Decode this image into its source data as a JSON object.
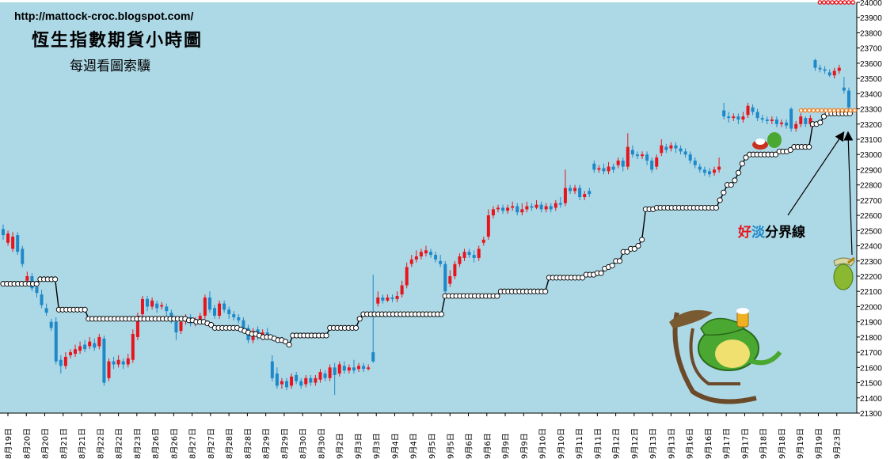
{
  "header": {
    "url": "http://mattock-croc.blogspot.com/",
    "title": "恆生指數期貨小時圖",
    "subtitle": "每週看圖索驥"
  },
  "annotation": {
    "label_good": "好",
    "label_weak": "淡",
    "label_rest": "分界線"
  },
  "colors": {
    "background": "#add8e6",
    "up_candle": "#e8141c",
    "down_candle": "#1e88c8",
    "stop_line": "#000000",
    "resistance_dots": "#f08020"
  },
  "icons": [
    "crocodile-rocking-chair-icon",
    "crocodile-small-icon",
    "crocodile-tiny-icon"
  ],
  "chart_data": {
    "type": "candlestick",
    "ylim": [
      21300,
      24000
    ],
    "yticks": [
      21300,
      21400,
      21500,
      21600,
      21700,
      21800,
      21900,
      22000,
      22100,
      22200,
      22300,
      22400,
      22500,
      22600,
      22700,
      22800,
      22900,
      23000,
      23100,
      23200,
      23300,
      23400,
      23500,
      23600,
      23700,
      23800,
      23900,
      24000
    ],
    "x_labels": [
      "8月19日",
      "8月20日",
      "8月20日",
      "8月21日",
      "8月21日",
      "8月22日",
      "8月22日",
      "8月23日",
      "8月26日",
      "8月26日",
      "8月27日",
      "8月27日",
      "8月28日",
      "8月28日",
      "8月29日",
      "8月29日",
      "8月30日",
      "8月30日",
      "9月2日",
      "9月3日",
      "9月3日",
      "9月4日",
      "9月4日",
      "9月5日",
      "9月5日",
      "9月6日",
      "9月6日",
      "9月9日",
      "9月9日",
      "9月10日",
      "9月10日",
      "9月11日",
      "9月11日",
      "9月12日",
      "9月12日",
      "9月13日",
      "9月13日",
      "9月16日",
      "9月16日",
      "9月17日",
      "9月17日",
      "9月18日",
      "9月18日",
      "9月19日",
      "9月19日",
      "9月23日"
    ],
    "candles": [
      [
        22510,
        22470,
        22540,
        22440
      ],
      [
        22420,
        22480,
        22500,
        22400
      ],
      [
        22380,
        22460,
        22490,
        22360
      ],
      [
        22470,
        22360,
        22490,
        22340
      ],
      [
        22380,
        22280,
        22400,
        22260
      ],
      [
        22170,
        22200,
        22230,
        22150
      ],
      [
        22200,
        22120,
        22220,
        22100
      ],
      [
        22130,
        22090,
        22160,
        22060
      ],
      [
        22080,
        22010,
        22110,
        21990
      ],
      [
        21990,
        21960,
        22020,
        21940
      ],
      [
        21900,
        21860,
        21920,
        21840
      ],
      [
        21900,
        21640,
        21930,
        21620
      ],
      [
        21650,
        21610,
        21680,
        21560
      ],
      [
        21610,
        21670,
        21700,
        21590
      ],
      [
        21680,
        21700,
        21720,
        21660
      ],
      [
        21690,
        21720,
        21750,
        21670
      ],
      [
        21710,
        21740,
        21770,
        21690
      ],
      [
        21750,
        21720,
        21780,
        21700
      ],
      [
        21740,
        21770,
        21800,
        21720
      ],
      [
        21760,
        21730,
        21790,
        21710
      ],
      [
        21740,
        21800,
        21820,
        21720
      ],
      [
        21790,
        21500,
        21810,
        21480
      ],
      [
        21530,
        21640,
        21660,
        21510
      ],
      [
        21640,
        21620,
        21670,
        21590
      ],
      [
        21620,
        21650,
        21680,
        21600
      ],
      [
        21640,
        21620,
        21660,
        21590
      ],
      [
        21620,
        21660,
        21690,
        21600
      ],
      [
        21650,
        21820,
        21850,
        21630
      ],
      [
        21800,
        21940,
        21960,
        21780
      ],
      [
        21950,
        22050,
        22070,
        21930
      ],
      [
        22050,
        22000,
        22070,
        21970
      ],
      [
        22000,
        22040,
        22060,
        21980
      ],
      [
        22020,
        21990,
        22040,
        21960
      ],
      [
        22000,
        22010,
        22030,
        21980
      ],
      [
        22000,
        21970,
        22020,
        21940
      ],
      [
        21960,
        21900,
        21980,
        21890
      ],
      [
        21900,
        21830,
        21920,
        21780
      ],
      [
        21840,
        21900,
        21920,
        21820
      ],
      [
        21900,
        21930,
        21950,
        21880
      ],
      [
        21930,
        21890,
        21950,
        21870
      ],
      [
        21890,
        21910,
        21930,
        21870
      ],
      [
        21910,
        21940,
        21960,
        21900
      ],
      [
        21940,
        22060,
        22080,
        21920
      ],
      [
        22060,
        21980,
        22100,
        21960
      ],
      [
        21990,
        21940,
        22010,
        21920
      ],
      [
        21940,
        22020,
        22040,
        21920
      ],
      [
        22020,
        21980,
        22040,
        21960
      ],
      [
        21980,
        21950,
        22000,
        21920
      ],
      [
        21950,
        21930,
        21970,
        21910
      ],
      [
        21930,
        21910,
        21950,
        21890
      ],
      [
        21910,
        21860,
        21930,
        21840
      ],
      [
        21860,
        21780,
        21880,
        21760
      ],
      [
        21780,
        21840,
        21860,
        21760
      ],
      [
        21850,
        21800,
        21870,
        21780
      ],
      [
        21800,
        21830,
        21850,
        21780
      ],
      [
        21830,
        21810,
        21860,
        21790
      ],
      [
        21640,
        21530,
        21680,
        21510
      ],
      [
        21560,
        21480,
        21600,
        21460
      ],
      [
        21490,
        21510,
        21530,
        21460
      ],
      [
        21510,
        21470,
        21530,
        21450
      ],
      [
        21480,
        21540,
        21560,
        21460
      ],
      [
        21550,
        21510,
        21570,
        21490
      ],
      [
        21510,
        21480,
        21530,
        21460
      ],
      [
        21490,
        21530,
        21550,
        21470
      ],
      [
        21530,
        21500,
        21550,
        21480
      ],
      [
        21500,
        21530,
        21550,
        21480
      ],
      [
        21520,
        21570,
        21590,
        21500
      ],
      [
        21560,
        21530,
        21580,
        21510
      ],
      [
        21530,
        21600,
        21620,
        21510
      ],
      [
        21600,
        21550,
        21630,
        21420
      ],
      [
        21560,
        21620,
        21640,
        21540
      ],
      [
        21610,
        21580,
        21640,
        21560
      ],
      [
        21580,
        21600,
        21620,
        21560
      ],
      [
        21600,
        21580,
        21650,
        21560
      ],
      [
        21590,
        21610,
        21630,
        21570
      ],
      [
        21610,
        21590,
        21630,
        21570
      ],
      [
        21590,
        21600,
        21620,
        21580
      ],
      [
        21700,
        21640,
        22210,
        21630
      ],
      [
        22020,
        22060,
        22100,
        22000
      ],
      [
        22060,
        22040,
        22080,
        22020
      ],
      [
        22040,
        22060,
        22080,
        22030
      ],
      [
        22060,
        22050,
        22080,
        22030
      ],
      [
        22050,
        22070,
        22100,
        22030
      ],
      [
        22080,
        22140,
        22170,
        22060
      ],
      [
        22140,
        22260,
        22290,
        22120
      ],
      [
        22280,
        22310,
        22340,
        22260
      ],
      [
        22310,
        22330,
        22370,
        22290
      ],
      [
        22330,
        22360,
        22380,
        22310
      ],
      [
        22350,
        22370,
        22400,
        22330
      ],
      [
        22360,
        22340,
        22380,
        22320
      ],
      [
        22340,
        22310,
        22360,
        22290
      ],
      [
        22300,
        22280,
        22340,
        22260
      ],
      [
        22280,
        22100,
        22300,
        22060
      ],
      [
        22150,
        22200,
        22240,
        22130
      ],
      [
        22200,
        22280,
        22300,
        22180
      ],
      [
        22280,
        22330,
        22350,
        22260
      ],
      [
        22320,
        22360,
        22380,
        22300
      ],
      [
        22360,
        22340,
        22380,
        22320
      ],
      [
        22340,
        22320,
        22370,
        22290
      ],
      [
        22320,
        22380,
        22400,
        22300
      ],
      [
        22420,
        22440,
        22460,
        22400
      ],
      [
        22460,
        22600,
        22640,
        22440
      ],
      [
        22600,
        22640,
        22660,
        22580
      ],
      [
        22640,
        22650,
        22670,
        22620
      ],
      [
        22650,
        22630,
        22670,
        22610
      ],
      [
        22630,
        22650,
        22670,
        22610
      ],
      [
        22650,
        22660,
        22690,
        22630
      ],
      [
        22660,
        22620,
        22680,
        22600
      ],
      [
        22620,
        22640,
        22680,
        22600
      ],
      [
        22640,
        22660,
        22690,
        22620
      ],
      [
        22660,
        22650,
        22680,
        22630
      ],
      [
        22650,
        22670,
        22700,
        22640
      ],
      [
        22670,
        22640,
        22690,
        22620
      ],
      [
        22640,
        22660,
        22680,
        22620
      ],
      [
        22660,
        22640,
        22680,
        22620
      ],
      [
        22650,
        22680,
        22700,
        22630
      ],
      [
        22680,
        22670,
        22720,
        22650
      ],
      [
        22680,
        22780,
        22900,
        22660
      ],
      [
        22780,
        22760,
        22800,
        22740
      ],
      [
        22760,
        22780,
        22800,
        22740
      ],
      [
        22780,
        22720,
        22800,
        22700
      ],
      [
        22720,
        22740,
        22760,
        22700
      ],
      [
        22760,
        22740,
        22780,
        22720
      ],
      [
        22940,
        22900,
        22960,
        22880
      ],
      [
        22900,
        22910,
        22930,
        22880
      ],
      [
        22910,
        22890,
        22940,
        22870
      ],
      [
        22890,
        22920,
        22950,
        22870
      ],
      [
        22920,
        22900,
        22940,
        22880
      ],
      [
        22930,
        22960,
        22980,
        22910
      ],
      [
        22960,
        22920,
        22980,
        22890
      ],
      [
        22920,
        23050,
        23140,
        22900
      ],
      [
        23030,
        23000,
        23060,
        22980
      ],
      [
        23000,
        22990,
        23020,
        22970
      ],
      [
        22990,
        23000,
        23020,
        22970
      ],
      [
        23000,
        22960,
        23020,
        22930
      ],
      [
        22960,
        22900,
        22980,
        22880
      ],
      [
        22920,
        22980,
        23000,
        22900
      ],
      [
        23010,
        23060,
        23100,
        22990
      ],
      [
        23050,
        23030,
        23070,
        23010
      ],
      [
        23040,
        23060,
        23080,
        23020
      ],
      [
        23060,
        23040,
        23080,
        23010
      ],
      [
        23040,
        23020,
        23060,
        23000
      ],
      [
        23020,
        23000,
        23040,
        22980
      ],
      [
        23000,
        22960,
        23020,
        22940
      ],
      [
        22960,
        22930,
        22980,
        22910
      ],
      [
        22920,
        22900,
        22940,
        22880
      ],
      [
        22900,
        22880,
        22920,
        22860
      ],
      [
        22890,
        22870,
        22910,
        22850
      ],
      [
        22880,
        22900,
        22920,
        22860
      ],
      [
        22900,
        22920,
        22980,
        22880
      ],
      [
        23290,
        23250,
        23340,
        23230
      ],
      [
        23250,
        23240,
        23280,
        23210
      ],
      [
        23240,
        23250,
        23270,
        23220
      ],
      [
        23250,
        23230,
        23270,
        23200
      ],
      [
        23230,
        23250,
        23280,
        23210
      ],
      [
        23260,
        23320,
        23340,
        23240
      ],
      [
        23310,
        23280,
        23330,
        23260
      ],
      [
        23280,
        23240,
        23300,
        23220
      ],
      [
        23240,
        23230,
        23260,
        23210
      ],
      [
        23230,
        23220,
        23250,
        23200
      ],
      [
        23220,
        23230,
        23250,
        23200
      ],
      [
        23230,
        23200,
        23250,
        23180
      ],
      [
        23200,
        23210,
        23230,
        23180
      ],
      [
        23210,
        23190,
        23230,
        23170
      ],
      [
        23300,
        23170,
        23310,
        23150
      ],
      [
        23170,
        23200,
        23220,
        23150
      ],
      [
        23200,
        23250,
        23270,
        23180
      ],
      [
        23240,
        23200,
        23250,
        23180
      ],
      [
        23200,
        23240,
        23260,
        23180
      ],
      [
        23620,
        23570,
        23630,
        23550
      ],
      [
        23570,
        23560,
        23590,
        23540
      ],
      [
        23560,
        23550,
        23580,
        23530
      ],
      [
        23540,
        23520,
        23560,
        23510
      ],
      [
        23520,
        23550,
        23570,
        23500
      ],
      [
        23550,
        23570,
        23590,
        23530
      ],
      [
        23440,
        23420,
        23510,
        23400
      ],
      [
        23420,
        23310,
        23440,
        23290
      ]
    ],
    "stop_line": [
      22150,
      22150,
      22150,
      22150,
      22150,
      22150,
      22150,
      22150,
      22150,
      22150,
      22180,
      22180,
      22180,
      22180,
      22180,
      21980,
      21980,
      21980,
      21980,
      21980,
      21980,
      21980,
      21980,
      21920,
      21920,
      21920,
      21920,
      21920,
      21920,
      21920,
      21920,
      21920,
      21920,
      21920,
      21920,
      21920,
      21920,
      21920,
      21920,
      21920,
      21920,
      21920,
      21920,
      21920,
      21920,
      21920,
      21920,
      21920,
      21920,
      21920,
      21910,
      21910,
      21900,
      21900,
      21900,
      21890,
      21880,
      21860,
      21860,
      21860,
      21860,
      21860,
      21860,
      21860,
      21850,
      21840,
      21830,
      21820,
      21820,
      21810,
      21800,
      21800,
      21800,
      21790,
      21780,
      21780,
      21770,
      21750,
      21810,
      21810,
      21810,
      21810,
      21810,
      21810,
      21810,
      21810,
      21810,
      21810,
      21860,
      21860,
      21860,
      21860,
      21860,
      21860,
      21860,
      21860,
      21920,
      21950,
      21950,
      21950,
      21950,
      21950,
      21950,
      21950,
      21950,
      21950,
      21950,
      21950,
      21950,
      21950,
      21950,
      21950,
      21950,
      21950,
      21950,
      21950,
      21950,
      21950,
      21950,
      22070,
      22070,
      22070,
      22070,
      22070,
      22070,
      22070,
      22070,
      22070,
      22070,
      22070,
      22070,
      22070,
      22070,
      22070,
      22100,
      22100,
      22100,
      22100,
      22100,
      22100,
      22100,
      22100,
      22100,
      22100,
      22100,
      22100,
      22100,
      22190,
      22190,
      22190,
      22190,
      22190,
      22190,
      22190,
      22190,
      22190,
      22190,
      22210,
      22210,
      22210,
      22220,
      22220,
      22250,
      22260,
      22270,
      22300,
      22300,
      22360,
      22360,
      22380,
      22380,
      22400,
      22440,
      22640,
      22640,
      22640,
      22650,
      22650,
      22650,
      22650,
      22650,
      22650,
      22650,
      22650,
      22650,
      22650,
      22650,
      22650,
      22650,
      22650,
      22650,
      22650,
      22650,
      22700,
      22750,
      22800,
      22800,
      22830,
      22880,
      22940,
      22980,
      23000,
      23000,
      23000,
      23000,
      23000,
      23000,
      23000,
      23000,
      23020,
      23020,
      23020,
      23030,
      23050,
      23050,
      23050,
      23050,
      23050,
      23200,
      23200,
      23210,
      23250,
      23270,
      23270,
      23270,
      23270,
      23270,
      23270,
      23270
    ],
    "resistance_top": {
      "value": 24000,
      "x_range": [
        0.957,
        0.999
      ]
    },
    "resistance_mid": {
      "value": 23290,
      "x_range": [
        0.935,
        0.999
      ]
    },
    "last_close": 23310
  }
}
